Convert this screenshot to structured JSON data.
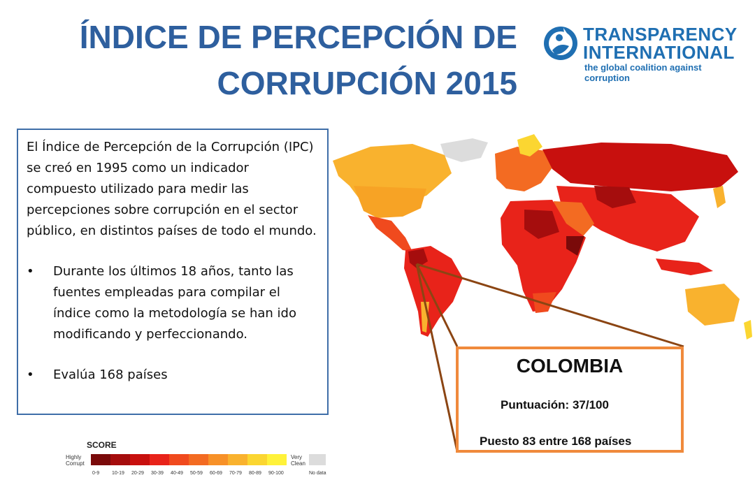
{
  "title": {
    "line1": "ÍNDICE DE PERCEPCIÓN DE",
    "line2": "CORRUPCIÓN 2015"
  },
  "logo": {
    "line1": "TRANSPARENCY",
    "line2": "INTERNATIONAL",
    "line3": "the global coalition against corruption"
  },
  "info": {
    "paragraph": "El Índice de Percepción de la Corrupción (IPC) se creó en 1995 como un indicador compuesto utilizado para medir las percepciones sobre corrupción en el sector público, en distintos países de todo el mundo.",
    "bullets": [
      "Durante los últimos 18 años, tanto las fuentes empleadas para compilar el índice como la metodología se han ido modificando y perfeccionando.",
      "Evalúa 168 países"
    ],
    "bullet_glyph": "•"
  },
  "colombia": {
    "name": "COLOMBIA",
    "score": "Puntuación: 37/100",
    "rank": "Puesto 83 entre 168 países"
  },
  "legend": {
    "title": "SCORE",
    "left_label": [
      "Highly",
      "Corrupt"
    ],
    "right_label": [
      "Very",
      "Clean"
    ],
    "no_data": "No data",
    "ranges": [
      "0-9",
      "10-19",
      "20-29",
      "30-39",
      "40-49",
      "50-59",
      "60-69",
      "70-79",
      "80-89",
      "90-100"
    ]
  },
  "colors": {
    "title": "#2e5f9e",
    "box_border": "#3f6ea8",
    "colombia_border": "#f08a3c",
    "callout": "#8b4513",
    "scale": [
      "#7a0a0a",
      "#a50d0d",
      "#c8100e",
      "#e8231a",
      "#f04a1e",
      "#f36b22",
      "#f79128",
      "#f9b22e",
      "#fbd631",
      "#fff23a"
    ],
    "no_data": "#dcdcdc"
  }
}
